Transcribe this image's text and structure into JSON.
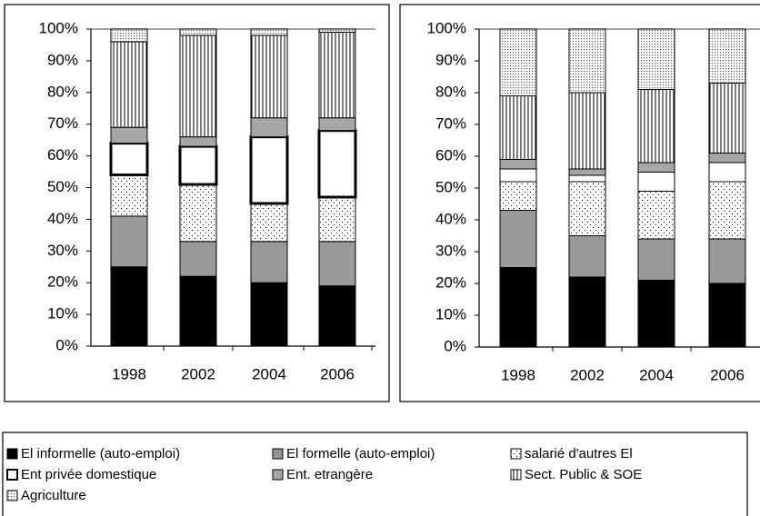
{
  "chart_data": [
    {
      "type": "stacked-bar",
      "categories": [
        "1998",
        "2002",
        "2004",
        "2006"
      ],
      "ylim": [
        0,
        100
      ],
      "yticks": [
        {
          "value": 0,
          "label": "0%"
        },
        {
          "value": 10,
          "label": "10%"
        },
        {
          "value": 20,
          "label": "20%"
        },
        {
          "value": 30,
          "label": "30%"
        },
        {
          "value": 40,
          "label": "40%"
        },
        {
          "value": 50,
          "label": "50%"
        },
        {
          "value": 60,
          "label": "60%"
        },
        {
          "value": 70,
          "label": "70%"
        },
        {
          "value": 80,
          "label": "80%"
        },
        {
          "value": 90,
          "label": "90%"
        },
        {
          "value": 100,
          "label": "100%"
        }
      ],
      "series": [
        {
          "name": "El informelle (auto-emploi)",
          "color": "#000000",
          "values": [
            25,
            22,
            20,
            19
          ]
        },
        {
          "name": "El formelle (auto-emploi)",
          "color": "#999999",
          "values": [
            16,
            11,
            13,
            14
          ]
        },
        {
          "name": "salarié d'autres El",
          "color": "#ffffff",
          "values": [
            13,
            18,
            12,
            14
          ]
        },
        {
          "name": "Ent privée domestique",
          "color": "#ffffff",
          "values": [
            10,
            12,
            21,
            21
          ]
        },
        {
          "name": "Ent. etrangère",
          "color": "#a6a6a6",
          "values": [
            5,
            3,
            6,
            4
          ]
        },
        {
          "name": "Sect. Public & SOE",
          "color": "#ffffff",
          "values": [
            27,
            32,
            26,
            27
          ]
        },
        {
          "name": "Agriculture",
          "color": "#ffffff",
          "values": [
            4,
            2,
            2,
            1
          ]
        }
      ]
    },
    {
      "type": "stacked-bar",
      "categories": [
        "1998",
        "2002",
        "2004",
        "2006"
      ],
      "ylim": [
        0,
        100
      ],
      "yticks": [
        {
          "value": 0,
          "label": "0%"
        },
        {
          "value": 10,
          "label": "10%"
        },
        {
          "value": 20,
          "label": "20%"
        },
        {
          "value": 30,
          "label": "30%"
        },
        {
          "value": 40,
          "label": "40%"
        },
        {
          "value": 50,
          "label": "50%"
        },
        {
          "value": 60,
          "label": "60%"
        },
        {
          "value": 70,
          "label": "70%"
        },
        {
          "value": 80,
          "label": "80%"
        },
        {
          "value": 90,
          "label": "90%"
        },
        {
          "value": 100,
          "label": "100%"
        }
      ],
      "series": [
        {
          "color": "#000000",
          "values": [
            25,
            22,
            21,
            20
          ]
        },
        {
          "color": "#999999",
          "values": [
            18,
            13,
            13,
            14
          ]
        },
        {
          "color": "#ffffff",
          "values": [
            9,
            17,
            15,
            18
          ]
        },
        {
          "color": "#ffffff",
          "values": [
            4,
            2,
            6,
            6
          ]
        },
        {
          "color": "#a6a6a6",
          "values": [
            3,
            2,
            3,
            3
          ]
        },
        {
          "color": "#ffffff",
          "values": [
            20,
            24,
            23,
            22
          ]
        },
        {
          "color": "#ffffff",
          "values": [
            21,
            20,
            19,
            17
          ]
        }
      ]
    }
  ]
}
